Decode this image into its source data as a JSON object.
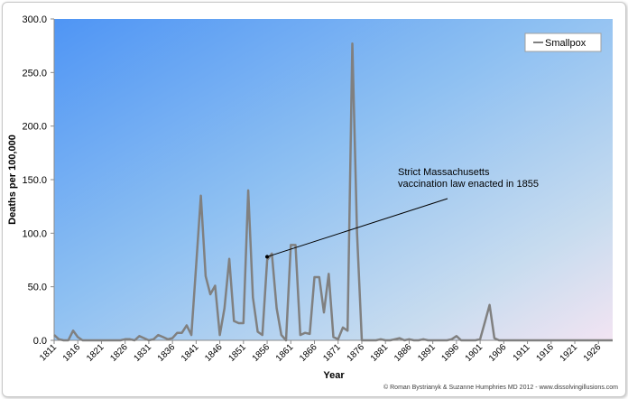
{
  "chart_data": {
    "type": "line",
    "title": "",
    "xlabel": "Year",
    "ylabel": "Deaths per 100,000",
    "ylim": [
      0,
      300
    ],
    "yticks": [
      "0.0",
      "50.0",
      "100.0",
      "150.0",
      "200.0",
      "250.0",
      "300.0"
    ],
    "xlim": [
      1811,
      1929
    ],
    "xticks": [
      "1811",
      "1816",
      "1821",
      "1826",
      "1831",
      "1836",
      "1841",
      "1846",
      "1851",
      "1856",
      "1861",
      "1866",
      "1871",
      "1876",
      "1881",
      "1886",
      "1891",
      "1896",
      "1901",
      "1906",
      "1911",
      "1916",
      "1921",
      "1926"
    ],
    "grid": false,
    "legend_position": "top-right",
    "series": [
      {
        "name": "Smallpox",
        "color": "#808080",
        "x": [
          1811,
          1812,
          1813,
          1814,
          1815,
          1816,
          1817,
          1818,
          1819,
          1820,
          1821,
          1822,
          1823,
          1824,
          1825,
          1826,
          1827,
          1828,
          1829,
          1830,
          1831,
          1832,
          1833,
          1834,
          1835,
          1836,
          1837,
          1838,
          1839,
          1840,
          1841,
          1842,
          1843,
          1844,
          1845,
          1846,
          1847,
          1848,
          1849,
          1850,
          1851,
          1852,
          1853,
          1854,
          1855,
          1856,
          1857,
          1858,
          1859,
          1860,
          1861,
          1862,
          1863,
          1864,
          1865,
          1866,
          1867,
          1868,
          1869,
          1870,
          1871,
          1872,
          1873,
          1874,
          1875,
          1876,
          1877,
          1878,
          1879,
          1880,
          1881,
          1882,
          1883,
          1884,
          1885,
          1886,
          1887,
          1888,
          1889,
          1890,
          1891,
          1892,
          1893,
          1894,
          1895,
          1896,
          1897,
          1898,
          1899,
          1900,
          1901,
          1902,
          1903,
          1904,
          1905,
          1906,
          1907,
          1908,
          1909,
          1910,
          1911,
          1912,
          1913,
          1914,
          1915,
          1916,
          1917,
          1918,
          1919,
          1920,
          1921,
          1922,
          1923,
          1924,
          1925,
          1926,
          1927,
          1928,
          1929
        ],
        "y": [
          5,
          1,
          0,
          0,
          9,
          3,
          0,
          0,
          0,
          0,
          0,
          0,
          0,
          0,
          0,
          1,
          1,
          0,
          4,
          2,
          0,
          1,
          5,
          3,
          1,
          2,
          7,
          7,
          14,
          5,
          70,
          135,
          60,
          43,
          51,
          5,
          30,
          76,
          18,
          16,
          16,
          140,
          40,
          8,
          5,
          75,
          81,
          30,
          5,
          0,
          89,
          89,
          5,
          7,
          6,
          59,
          59,
          26,
          62,
          3,
          1,
          12,
          9,
          277,
          100,
          0,
          0,
          0,
          0,
          1,
          0,
          0,
          1,
          2,
          0,
          1,
          0,
          0,
          1,
          0,
          0,
          0,
          0,
          0,
          1,
          4,
          0,
          0,
          0,
          0,
          1,
          17,
          33,
          2,
          0,
          0,
          0,
          0,
          0,
          0,
          0,
          0,
          0,
          0,
          0,
          0,
          0,
          0,
          0,
          0,
          0,
          0,
          0,
          0,
          0,
          0,
          0,
          0,
          0
        ]
      }
    ],
    "annotations": [
      {
        "lines": [
          "Strict Massachusetts",
          "vaccination law enacted in 1855"
        ],
        "arrow_to": [
          1856,
          78
        ]
      }
    ],
    "credit": "© Roman Bystrianyk & Suzanne Humphries MD 2012 - www.dissolvingillusions.com"
  }
}
